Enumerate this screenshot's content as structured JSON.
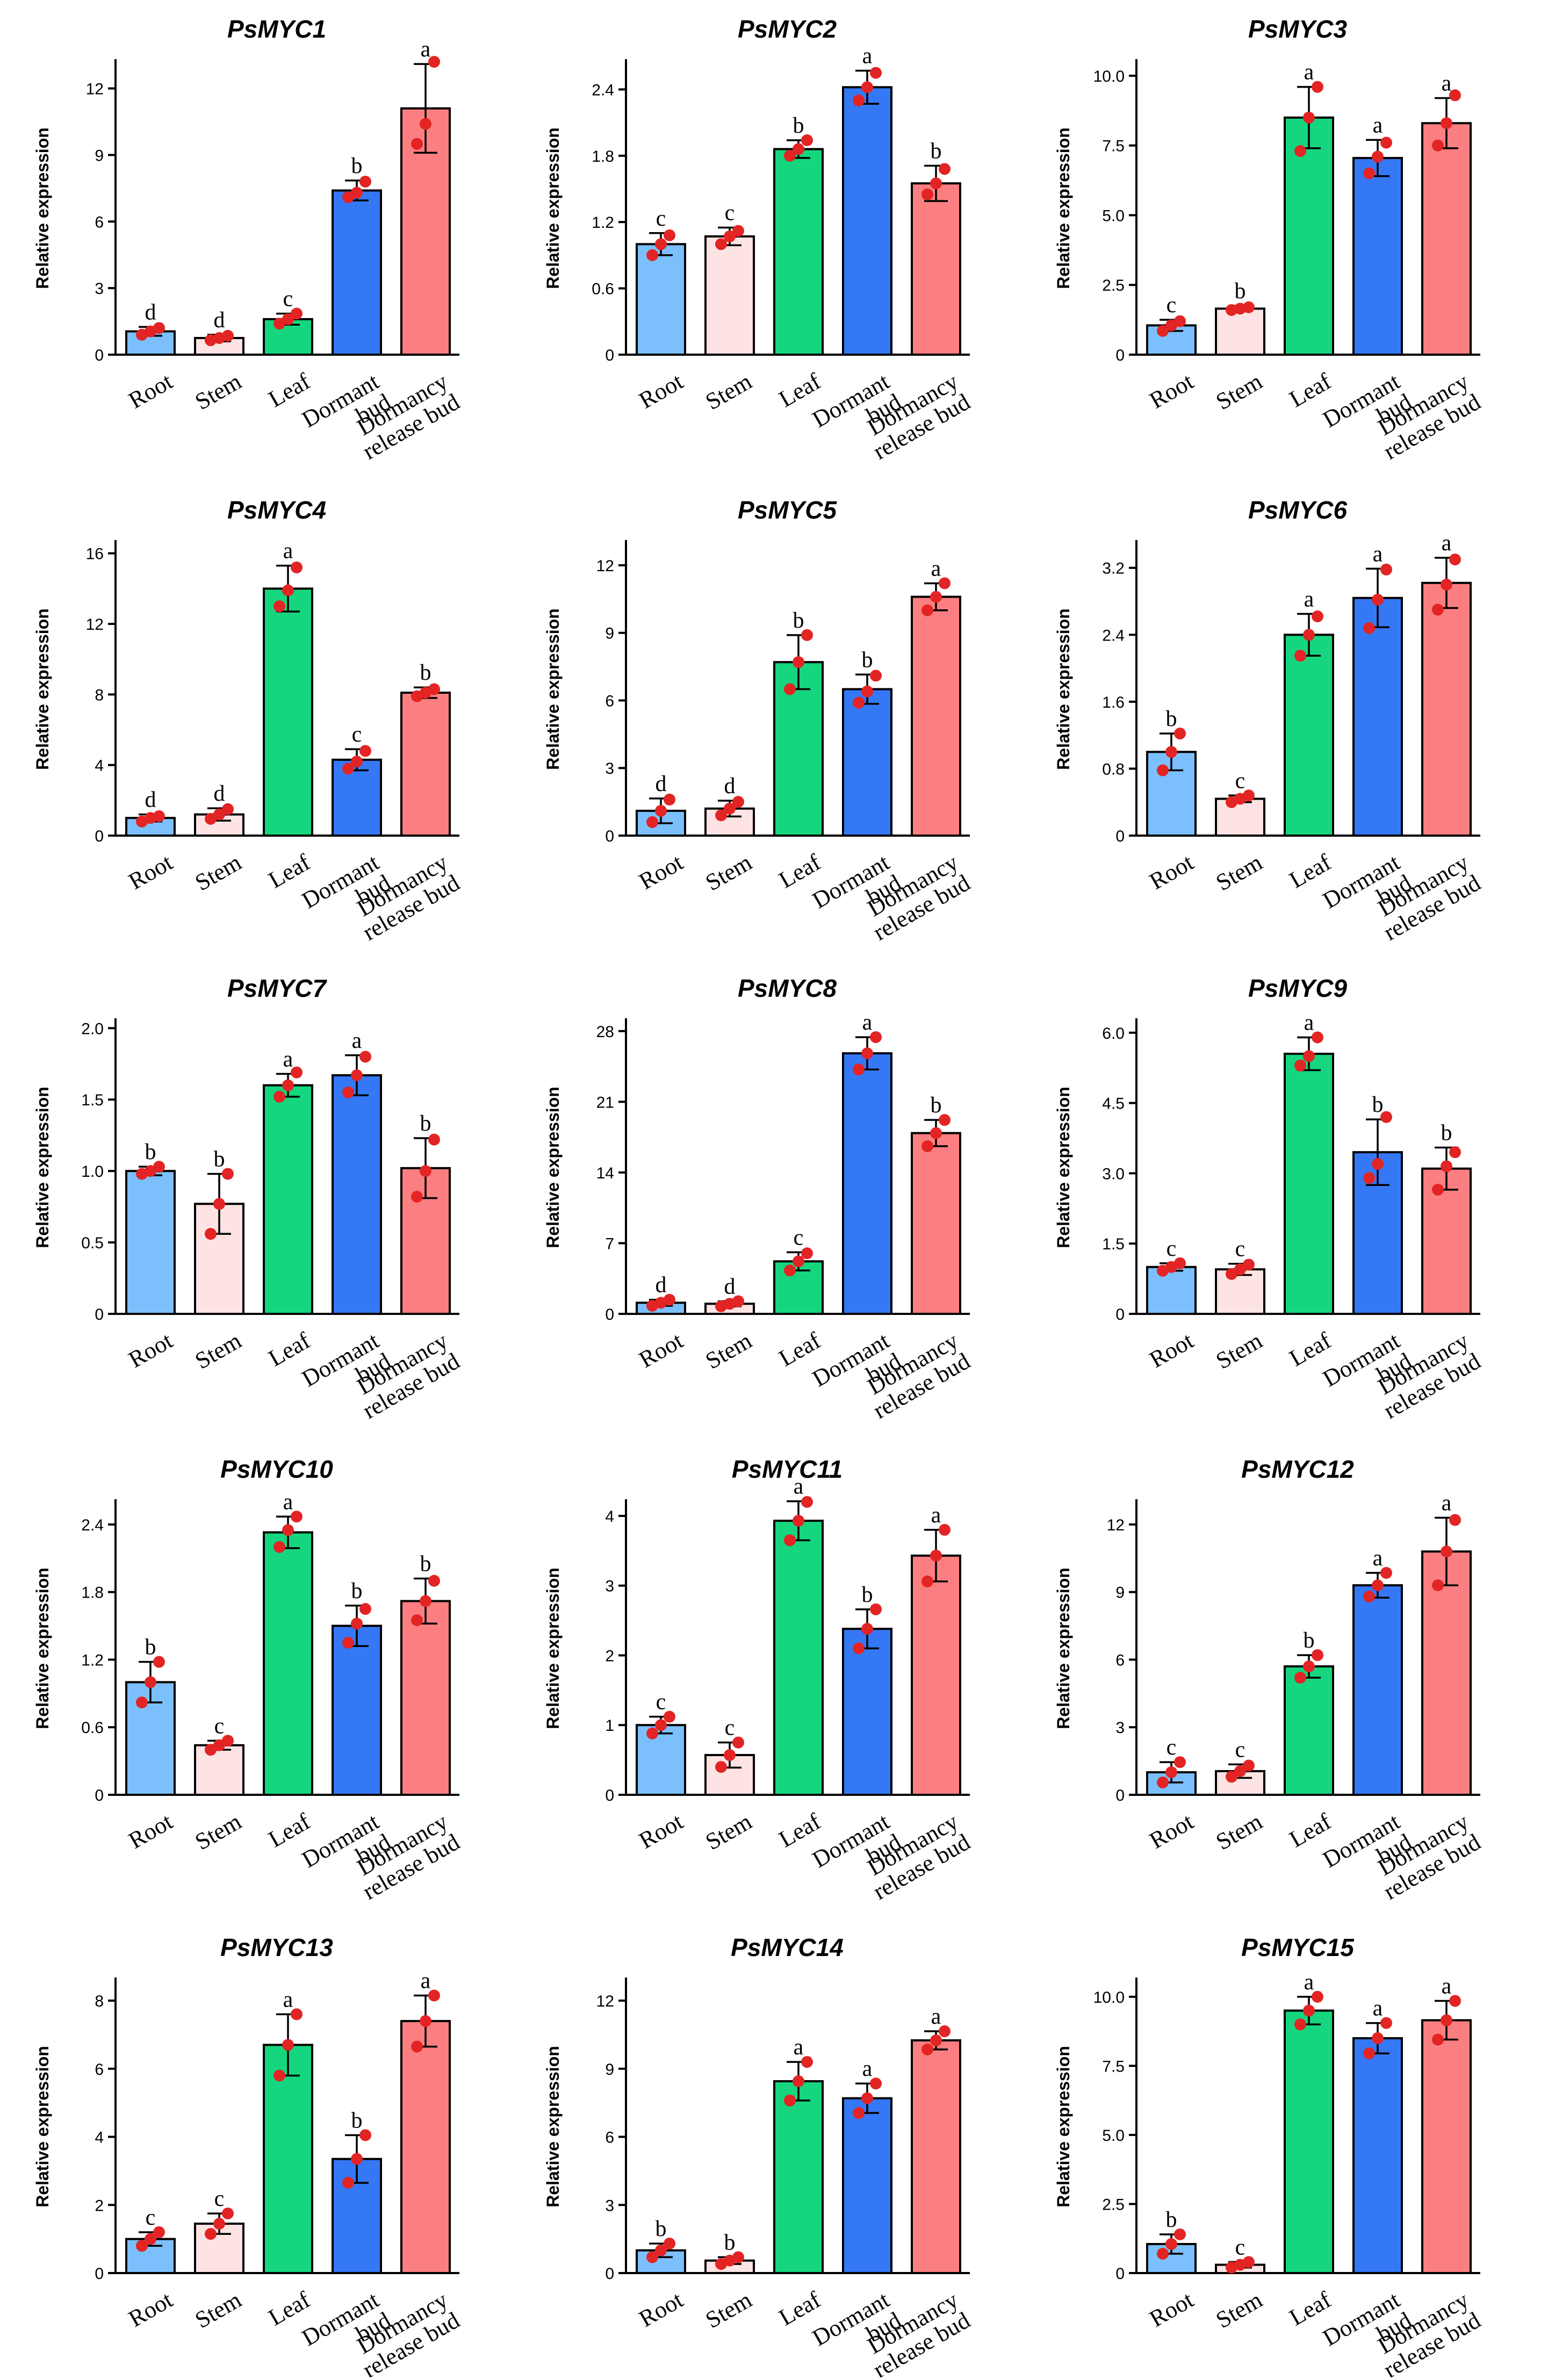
{
  "figure": {
    "categories": [
      "Root",
      "Stem",
      "Leaf",
      "Dormant bud",
      "Dormancy release bud"
    ],
    "category_lines": [
      [
        "Root"
      ],
      [
        "Stem"
      ],
      [
        "Leaf"
      ],
      [
        "Dormant",
        "bud"
      ],
      [
        "Dormancy",
        "release bud"
      ]
    ],
    "bar_colors": [
      "#7bc0fc",
      "#fde3e3",
      "#15d67e",
      "#3578f6",
      "#fb7f80"
    ],
    "point_color": "#e32424",
    "ylabel": "Relative expression"
  },
  "chart_data": [
    {
      "type": "bar",
      "title": "PsMYC1",
      "ylim": [
        0,
        13.2
      ],
      "yticks": [
        "0",
        "3",
        "6",
        "9",
        "12"
      ],
      "values": [
        1.05,
        0.75,
        1.6,
        7.4,
        11.1
      ],
      "errors": [
        0.2,
        0.15,
        0.25,
        0.45,
        2.0
      ],
      "points": [
        [
          0.9,
          1.05,
          1.2
        ],
        [
          0.65,
          0.75,
          0.85
        ],
        [
          1.4,
          1.6,
          1.85
        ],
        [
          7.1,
          7.3,
          7.8
        ],
        [
          9.5,
          10.4,
          13.2
        ]
      ],
      "letters": [
        "d",
        "d",
        "c",
        "b",
        "a"
      ]
    },
    {
      "type": "bar",
      "title": "PsMYC2",
      "ylim": [
        0,
        2.65
      ],
      "yticks": [
        "0",
        "0.6",
        "1.2",
        "1.8",
        "2.4"
      ],
      "values": [
        1.0,
        1.07,
        1.86,
        2.42,
        1.55
      ],
      "errors": [
        0.1,
        0.08,
        0.08,
        0.15,
        0.16
      ],
      "points": [
        [
          0.9,
          1.0,
          1.08
        ],
        [
          1.0,
          1.07,
          1.12
        ],
        [
          1.8,
          1.86,
          1.94
        ],
        [
          2.3,
          2.42,
          2.55
        ],
        [
          1.45,
          1.55,
          1.68
        ]
      ],
      "letters": [
        "c",
        "c",
        "b",
        "a",
        "b"
      ]
    },
    {
      "type": "bar",
      "title": "PsMYC3",
      "ylim": [
        0,
        10.5
      ],
      "yticks": [
        "0",
        "2.5",
        "5.0",
        "7.5",
        "10.0"
      ],
      "values": [
        1.05,
        1.65,
        8.5,
        7.05,
        8.3
      ],
      "errors": [
        0.2,
        0.1,
        1.1,
        0.65,
        0.9
      ],
      "points": [
        [
          0.85,
          1.05,
          1.2
        ],
        [
          1.6,
          1.65,
          1.7
        ],
        [
          7.3,
          8.5,
          9.6
        ],
        [
          6.5,
          7.1,
          7.6
        ],
        [
          7.5,
          8.3,
          9.3
        ]
      ],
      "letters": [
        "c",
        "b",
        "a",
        "a",
        "a"
      ]
    },
    {
      "type": "bar",
      "title": "PsMYC4",
      "ylim": [
        0,
        16.6
      ],
      "yticks": [
        "0",
        "4",
        "8",
        "12",
        "16"
      ],
      "values": [
        1.0,
        1.2,
        14.0,
        4.3,
        8.1
      ],
      "errors": [
        0.2,
        0.35,
        1.3,
        0.6,
        0.3
      ],
      "points": [
        [
          0.8,
          1.0,
          1.1
        ],
        [
          0.95,
          1.2,
          1.5
        ],
        [
          13.0,
          13.9,
          15.2
        ],
        [
          3.8,
          4.2,
          4.8
        ],
        [
          7.9,
          8.1,
          8.3
        ]
      ],
      "letters": [
        "d",
        "d",
        "a",
        "c",
        "b"
      ]
    },
    {
      "type": "bar",
      "title": "PsMYC5",
      "ylim": [
        0,
        13.0
      ],
      "yticks": [
        "0",
        "3",
        "6",
        "9",
        "12"
      ],
      "values": [
        1.1,
        1.2,
        7.7,
        6.5,
        10.6
      ],
      "errors": [
        0.55,
        0.35,
        1.2,
        0.65,
        0.6
      ],
      "points": [
        [
          0.6,
          1.1,
          1.6
        ],
        [
          0.9,
          1.2,
          1.5
        ],
        [
          6.5,
          7.7,
          8.9
        ],
        [
          5.9,
          6.4,
          7.1
        ],
        [
          10.0,
          10.6,
          11.2
        ]
      ],
      "letters": [
        "d",
        "d",
        "b",
        "b",
        "a"
      ]
    },
    {
      "type": "bar",
      "title": "PsMYC6",
      "ylim": [
        0,
        3.5
      ],
      "yticks": [
        "0",
        "0.8",
        "1.6",
        "2.4",
        "3.2"
      ],
      "values": [
        1.0,
        0.44,
        2.4,
        2.84,
        3.02
      ],
      "errors": [
        0.22,
        0.04,
        0.25,
        0.35,
        0.3
      ],
      "points": [
        [
          0.78,
          1.0,
          1.22
        ],
        [
          0.4,
          0.44,
          0.48
        ],
        [
          2.15,
          2.4,
          2.62
        ],
        [
          2.48,
          2.82,
          3.18
        ],
        [
          2.7,
          3.0,
          3.3
        ]
      ],
      "letters": [
        "b",
        "c",
        "a",
        "a",
        "a"
      ]
    },
    {
      "type": "bar",
      "title": "PsMYC7",
      "ylim": [
        0,
        2.05
      ],
      "yticks": [
        "0",
        "0.5",
        "1.0",
        "1.5",
        "2.0"
      ],
      "values": [
        1.0,
        0.77,
        1.6,
        1.67,
        1.02
      ],
      "errors": [
        0.03,
        0.21,
        0.08,
        0.14,
        0.21
      ],
      "points": [
        [
          0.98,
          1.0,
          1.03
        ],
        [
          0.56,
          0.77,
          0.98
        ],
        [
          1.52,
          1.6,
          1.69
        ],
        [
          1.55,
          1.67,
          1.8
        ],
        [
          0.82,
          1.0,
          1.22
        ]
      ],
      "letters": [
        "b",
        "b",
        "a",
        "a",
        "b"
      ]
    },
    {
      "type": "bar",
      "title": "PsMYC8",
      "ylim": [
        0,
        29.0
      ],
      "yticks": [
        "0",
        "7",
        "14",
        "21",
        "28"
      ],
      "values": [
        1.1,
        1.0,
        5.2,
        25.8,
        17.9
      ],
      "errors": [
        0.3,
        0.25,
        0.9,
        1.6,
        1.3
      ],
      "points": [
        [
          0.8,
          1.1,
          1.4
        ],
        [
          0.75,
          1.0,
          1.25
        ],
        [
          4.3,
          5.2,
          6.0
        ],
        [
          24.2,
          25.8,
          27.4
        ],
        [
          16.6,
          17.9,
          19.2
        ]
      ],
      "letters": [
        "d",
        "d",
        "c",
        "a",
        "b"
      ]
    },
    {
      "type": "bar",
      "title": "PsMYC9",
      "ylim": [
        0,
        6.25
      ],
      "yticks": [
        "0",
        "1.5",
        "3.0",
        "4.5",
        "6.0"
      ],
      "values": [
        1.0,
        0.95,
        5.55,
        3.45,
        3.1
      ],
      "errors": [
        0.08,
        0.12,
        0.35,
        0.7,
        0.45
      ],
      "points": [
        [
          0.92,
          1.0,
          1.08
        ],
        [
          0.85,
          0.95,
          1.05
        ],
        [
          5.3,
          5.5,
          5.9
        ],
        [
          2.9,
          3.2,
          4.2
        ],
        [
          2.65,
          3.15,
          3.45
        ]
      ],
      "letters": [
        "c",
        "c",
        "a",
        "b",
        "b"
      ]
    },
    {
      "type": "bar",
      "title": "PsMYC10",
      "ylim": [
        0,
        2.6
      ],
      "yticks": [
        "0",
        "0.6",
        "1.2",
        "1.8",
        "2.4"
      ],
      "values": [
        1.0,
        0.44,
        2.33,
        1.5,
        1.72
      ],
      "errors": [
        0.18,
        0.04,
        0.14,
        0.18,
        0.2
      ],
      "points": [
        [
          0.82,
          1.0,
          1.18
        ],
        [
          0.4,
          0.44,
          0.48
        ],
        [
          2.2,
          2.35,
          2.47
        ],
        [
          1.35,
          1.52,
          1.65
        ],
        [
          1.55,
          1.72,
          1.9
        ]
      ],
      "letters": [
        "b",
        "c",
        "a",
        "b",
        "b"
      ]
    },
    {
      "type": "bar",
      "title": "PsMYC11",
      "ylim": [
        0,
        4.2
      ],
      "yticks": [
        "0",
        "1",
        "2",
        "3",
        "4"
      ],
      "values": [
        1.0,
        0.57,
        3.93,
        2.38,
        3.43
      ],
      "errors": [
        0.12,
        0.18,
        0.28,
        0.28,
        0.37
      ],
      "points": [
        [
          0.88,
          1.0,
          1.12
        ],
        [
          0.4,
          0.57,
          0.75
        ],
        [
          3.65,
          3.93,
          4.2
        ],
        [
          2.1,
          2.38,
          2.66
        ],
        [
          3.06,
          3.43,
          3.8
        ]
      ],
      "letters": [
        "c",
        "c",
        "a",
        "b",
        "a"
      ]
    },
    {
      "type": "bar",
      "title": "PsMYC12",
      "ylim": [
        0,
        13.0
      ],
      "yticks": [
        "0",
        "3",
        "6",
        "9",
        "12"
      ],
      "values": [
        1.0,
        1.05,
        5.7,
        9.3,
        10.8
      ],
      "errors": [
        0.45,
        0.3,
        0.5,
        0.55,
        1.5
      ],
      "points": [
        [
          0.55,
          1.0,
          1.45
        ],
        [
          0.8,
          1.05,
          1.3
        ],
        [
          5.2,
          5.7,
          6.2
        ],
        [
          8.8,
          9.3,
          9.85
        ],
        [
          9.3,
          10.8,
          12.2
        ]
      ],
      "letters": [
        "c",
        "c",
        "b",
        "a",
        "a"
      ]
    },
    {
      "type": "bar",
      "title": "PsMYC13",
      "ylim": [
        0,
        8.6
      ],
      "yticks": [
        "0",
        "2",
        "4",
        "6",
        "8"
      ],
      "values": [
        1.0,
        1.45,
        6.7,
        3.35,
        7.4
      ],
      "errors": [
        0.2,
        0.3,
        0.9,
        0.7,
        0.75
      ],
      "points": [
        [
          0.8,
          1.0,
          1.2
        ],
        [
          1.15,
          1.45,
          1.75
        ],
        [
          5.8,
          6.7,
          7.6
        ],
        [
          2.65,
          3.35,
          4.05
        ],
        [
          6.65,
          7.4,
          8.15
        ]
      ],
      "letters": [
        "c",
        "c",
        "a",
        "b",
        "a"
      ]
    },
    {
      "type": "bar",
      "title": "PsMYC14",
      "ylim": [
        0,
        12.9
      ],
      "yticks": [
        "0",
        "3",
        "6",
        "9",
        "12"
      ],
      "values": [
        1.0,
        0.55,
        8.45,
        7.7,
        10.25
      ],
      "errors": [
        0.3,
        0.15,
        0.85,
        0.65,
        0.4
      ],
      "points": [
        [
          0.7,
          1.0,
          1.3
        ],
        [
          0.4,
          0.55,
          0.7
        ],
        [
          7.6,
          8.45,
          9.3
        ],
        [
          7.05,
          7.7,
          8.35
        ],
        [
          9.85,
          10.25,
          10.65
        ]
      ],
      "letters": [
        "b",
        "b",
        "a",
        "a",
        "a"
      ]
    },
    {
      "type": "bar",
      "title": "PsMYC15",
      "ylim": [
        0,
        10.6
      ],
      "yticks": [
        "0",
        "2.5",
        "5.0",
        "7.5",
        "10.0"
      ],
      "values": [
        1.05,
        0.3,
        9.5,
        8.5,
        9.15
      ],
      "errors": [
        0.35,
        0.1,
        0.5,
        0.55,
        0.7
      ],
      "points": [
        [
          0.7,
          1.05,
          1.4
        ],
        [
          0.2,
          0.3,
          0.4
        ],
        [
          9.0,
          9.5,
          10.0
        ],
        [
          7.95,
          8.5,
          9.05
        ],
        [
          8.45,
          9.15,
          9.85
        ]
      ],
      "letters": [
        "b",
        "c",
        "a",
        "a",
        "a"
      ]
    }
  ]
}
